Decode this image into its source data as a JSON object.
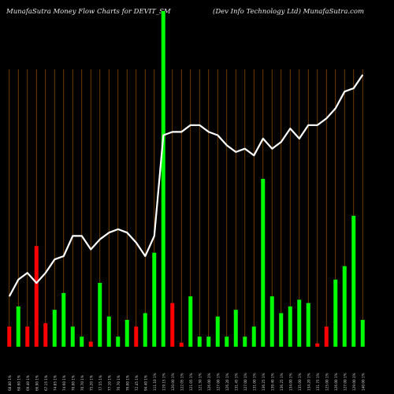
{
  "header": {
    "left": "MunafaSutra  Money Flow  Charts for DEVIT_SM",
    "right": "(Dev    Info    Technology Ltd) MunafaSutra.com"
  },
  "colors": {
    "background": "#000000",
    "up": "#00ff00",
    "down": "#ff0000",
    "line": "#ffffff",
    "grid": "#8a4b00",
    "label": "#cccccc"
  },
  "chart_data": {
    "type": "bar",
    "ylim": [
      0,
      100
    ],
    "categories": [
      "68.80 1%",
      "60.60 1%",
      "69.40 1%",
      "66.90 1%",
      "67.15 1%",
      "74.85 1%",
      "74.60 1%",
      "70.00 1%",
      "70.70 1%",
      "75.20 1%",
      "77.55 1%",
      "77.10 1%",
      "76.70 1%",
      "76.00 1%",
      "72.45 1%",
      "94.40 1%",
      "111.10 1%",
      "119.15 1%",
      "120.00 1%",
      "122.05 1%",
      "121.05 1%",
      "121.50 1%",
      "126.00 1%",
      "127.00 1%",
      "126.20 1%",
      "131.45 1%",
      "127.00 1%",
      "131.00 1%",
      "136.25 1%",
      "139.40 1%",
      "136.25 1%",
      "134.00 1%",
      "135.00 1%",
      "134.20 1%",
      "131.75 1%",
      "125.00 1%",
      "126.00 1%",
      "127.00 1%",
      "129.00 1%",
      "140.00 1%"
    ],
    "series": [
      {
        "values": [
          6,
          12,
          6,
          30,
          7,
          11,
          16,
          6,
          3,
          1.5,
          19,
          9,
          3,
          8,
          6,
          10,
          28,
          100,
          13,
          1.2,
          15,
          3,
          3,
          9,
          3,
          11,
          3,
          6,
          50,
          15,
          10,
          12,
          14,
          13,
          1,
          6,
          20,
          24,
          39,
          8
        ],
        "colors": [
          "red",
          "green",
          "red",
          "red",
          "red",
          "green",
          "green",
          "green",
          "green",
          "red",
          "green",
          "green",
          "green",
          "green",
          "red",
          "green",
          "green",
          "green",
          "red",
          "red",
          "green",
          "green",
          "green",
          "green",
          "green",
          "green",
          "green",
          "green",
          "green",
          "green",
          "green",
          "green",
          "green",
          "green",
          "red",
          "red",
          "green",
          "green",
          "green",
          "green"
        ]
      },
      {
        "values": [
          15,
          20,
          22,
          19,
          22,
          26,
          27,
          33,
          33,
          29,
          32,
          34,
          35,
          34,
          31,
          27,
          33,
          63,
          64,
          64,
          66,
          66,
          64,
          63,
          60,
          58,
          59,
          57,
          62,
          59,
          61,
          65,
          62,
          66,
          66,
          68,
          71,
          76,
          77,
          81
        ],
        "type": "line"
      }
    ]
  }
}
